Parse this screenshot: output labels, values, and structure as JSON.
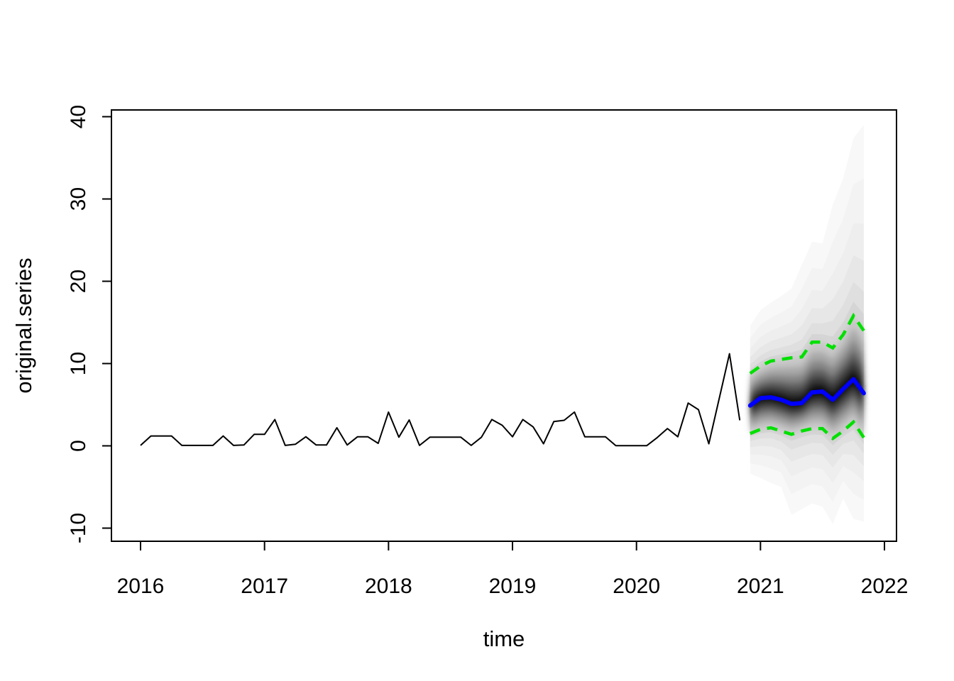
{
  "chart_data": {
    "type": "line",
    "title": "",
    "xlabel": "time",
    "ylabel": "original.series",
    "x_ticks": [
      2016,
      2017,
      2018,
      2019,
      2020,
      2021,
      2022
    ],
    "y_ticks": [
      -10,
      0,
      10,
      20,
      30,
      40
    ],
    "xlim": [
      2015.77,
      2022.1
    ],
    "ylim": [
      -11.6,
      41.5
    ],
    "grid": false,
    "legend": null,
    "colors": {
      "history_line": "#000000",
      "forecast_median": "#0000ff",
      "prediction_interval": "#00e000",
      "fan_lightest": "#f8f8f8",
      "fan_darkest": "#0d0d0d",
      "axis": "#000000",
      "background": "#ffffff"
    },
    "history": {
      "name": "original.series",
      "start": 2016.0,
      "frequency": 12,
      "values": [
        0.05,
        1.2,
        1.2,
        1.2,
        0.05,
        0.05,
        0.05,
        0.05,
        1.2,
        0.05,
        0.1,
        1.4,
        1.4,
        3.2,
        0.05,
        0.2,
        1.1,
        0.1,
        0.1,
        2.2,
        0.1,
        1.1,
        1.1,
        0.3,
        4.1,
        1.05,
        3.15,
        0.05,
        1.05,
        1.05,
        1.05,
        1.05,
        0.05,
        1.05,
        3.2,
        2.5,
        1.1,
        3.2,
        2.3,
        0.25,
        2.95,
        3.1,
        4.1,
        1.1,
        1.1,
        1.1,
        0.03,
        0.03,
        0.03,
        0.03,
        1.0,
        2.1,
        1.1,
        5.2,
        4.4,
        0.25,
        5.7,
        11.2,
        3.1
      ]
    },
    "forecast": {
      "start": 2020.9167,
      "frequency": 12,
      "horizon": 12,
      "median": [
        4.9,
        5.8,
        5.9,
        5.6,
        5.1,
        5.2,
        6.5,
        6.6,
        5.6,
        6.9,
        8.1,
        6.4
      ],
      "upper_interval": [
        8.8,
        9.7,
        10.3,
        10.5,
        10.7,
        10.8,
        12.6,
        12.6,
        11.9,
        13.5,
        15.8,
        14.0
      ],
      "lower_interval": [
        1.5,
        2.0,
        2.2,
        1.8,
        1.4,
        1.8,
        2.1,
        2.1,
        0.9,
        1.8,
        2.9,
        1.0
      ],
      "fan_top": [
        14.6,
        16.5,
        17.4,
        18.2,
        19.1,
        22.0,
        24.8,
        24.6,
        29.3,
        32.5,
        37.4,
        39.0
      ],
      "fan_bottom": [
        -3.4,
        -3.9,
        -4.5,
        -5.0,
        -8.4,
        -7.7,
        -7.0,
        -7.4,
        -9.5,
        -6.4,
        -8.9,
        -9.2
      ]
    }
  }
}
